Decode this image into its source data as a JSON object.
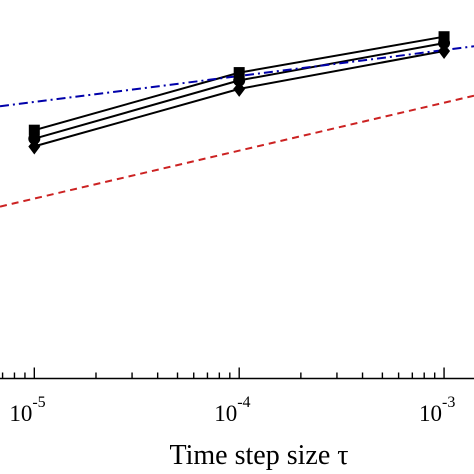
{
  "chart_data": {
    "type": "line",
    "title": "",
    "xlabel": "Time step size τ",
    "ylabel": "",
    "xscale": "log",
    "yscale": "log",
    "xlim": [
      6.8e-06,
      0.0014
    ],
    "ylim": [
      0.0003,
      0.04
    ],
    "grid": false,
    "legend": "none",
    "x_ticks": [
      {
        "base": "10",
        "exp": "-5"
      },
      {
        "base": "10",
        "exp": "-4"
      },
      {
        "base": "10",
        "exp": "-3"
      }
    ],
    "series": [
      {
        "x": [
          1e-05,
          0.0001,
          0.001
        ],
        "y": [
          0.0098,
          0.022,
          0.0364
        ],
        "color": "#000000",
        "style": "solid",
        "marker": "square"
      },
      {
        "x": [
          1e-05,
          0.0001,
          0.001
        ],
        "y": [
          0.0087,
          0.0197,
          0.0333
        ],
        "color": "#000000",
        "style": "solid",
        "marker": "circle"
      },
      {
        "x": [
          1e-05,
          0.0001,
          0.001
        ],
        "y": [
          0.0078,
          0.0175,
          0.0298
        ],
        "color": "#000000",
        "style": "solid",
        "marker": "diamond"
      },
      {
        "x": [
          6.8e-06,
          0.0014
        ],
        "y": [
          0.0137,
          0.0318
        ],
        "color": "#0000aa",
        "style": "dashdot",
        "marker": "none"
      },
      {
        "x": [
          6.8e-06,
          0.0014
        ],
        "y": [
          0.00335,
          0.0159
        ],
        "color": "#cc2222",
        "style": "dashed",
        "marker": "none"
      }
    ]
  }
}
